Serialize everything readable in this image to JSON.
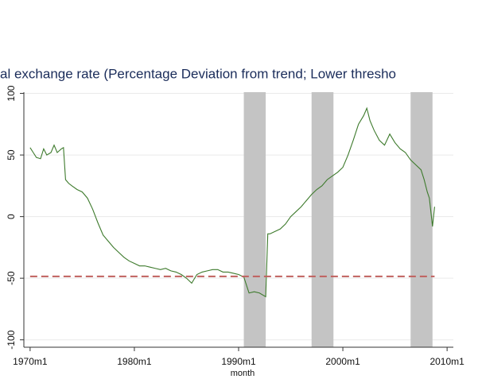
{
  "chart_data": {
    "type": "line",
    "title": "al exchange rate (Percentage Deviation from trend; Lower thresho",
    "xlabel": "month",
    "xlim": [
      1969.4,
      2010.6
    ],
    "ylim": [
      -106,
      101
    ],
    "xticks": [
      {
        "value": 1970,
        "label": "1970m1"
      },
      {
        "value": 1980,
        "label": "1980m1"
      },
      {
        "value": 1990,
        "label": "1990m1"
      },
      {
        "value": 2000,
        "label": "2000m1"
      },
      {
        "value": 2010,
        "label": "2010m1"
      }
    ],
    "yticks": [
      -100,
      -50,
      0,
      50,
      100
    ],
    "grid": true,
    "shaded_color": "#c4c4c4",
    "shaded_periods": [
      [
        1990.5,
        1992.6
      ],
      [
        1997.0,
        1999.1
      ],
      [
        2006.5,
        2008.6
      ]
    ],
    "series": [
      {
        "color": "#3d7a2c",
        "x": [
          1970,
          1970.3,
          1970.6,
          1971,
          1971.3,
          1971.6,
          1972,
          1972.3,
          1972.6,
          1973,
          1973.2,
          1973.4,
          1973.7,
          1974,
          1974.5,
          1975,
          1975.5,
          1976,
          1976.5,
          1977,
          1977.5,
          1978,
          1978.5,
          1979,
          1979.5,
          1980,
          1980.5,
          1981,
          1981.5,
          1982,
          1982.5,
          1983,
          1983.5,
          1984,
          1984.5,
          1985,
          1985.5,
          1986,
          1986.5,
          1987,
          1987.5,
          1988,
          1988.5,
          1989,
          1989.5,
          1990,
          1990.5,
          1991,
          1991.5,
          1992,
          1992.6,
          1992.8,
          1993,
          1993.5,
          1994,
          1994.5,
          1995,
          1995.5,
          1996,
          1996.5,
          1997,
          1997.5,
          1998,
          1998.5,
          1999,
          1999.5,
          2000,
          2000.5,
          2001,
          2001.5,
          2002,
          2002.3,
          2002.6,
          2003,
          2003.5,
          2004,
          2004.5,
          2005,
          2005.5,
          2006,
          2006.5,
          2007,
          2007.5,
          2007.8,
          2008.1,
          2008.3,
          2008.6,
          2008.8
        ],
        "values": [
          56,
          52,
          48,
          47,
          55,
          50,
          52,
          58,
          52,
          55,
          56,
          30,
          27,
          25,
          22,
          20,
          15,
          6,
          -5,
          -15,
          -20,
          -25,
          -29,
          -33,
          -36,
          -38,
          -40,
          -40,
          -41,
          -42,
          -43,
          -42,
          -44,
          -45,
          -47,
          -50,
          -54,
          -47,
          -45,
          -44,
          -43,
          -43,
          -45,
          -45,
          -46,
          -47,
          -49,
          -62,
          -61,
          -62,
          -65,
          -14,
          -14,
          -12,
          -10,
          -6,
          0,
          4,
          8,
          13,
          18,
          22,
          25,
          30,
          33,
          36,
          40,
          50,
          62,
          75,
          82,
          88,
          78,
          70,
          62,
          58,
          67,
          60,
          55,
          52,
          46,
          42,
          38,
          30,
          20,
          15,
          -8,
          8
        ]
      },
      {
        "color": "#c0605e",
        "dash": true,
        "x": [
          1970,
          2008.8
        ],
        "values": [
          -48.5,
          -48.5
        ]
      }
    ]
  }
}
